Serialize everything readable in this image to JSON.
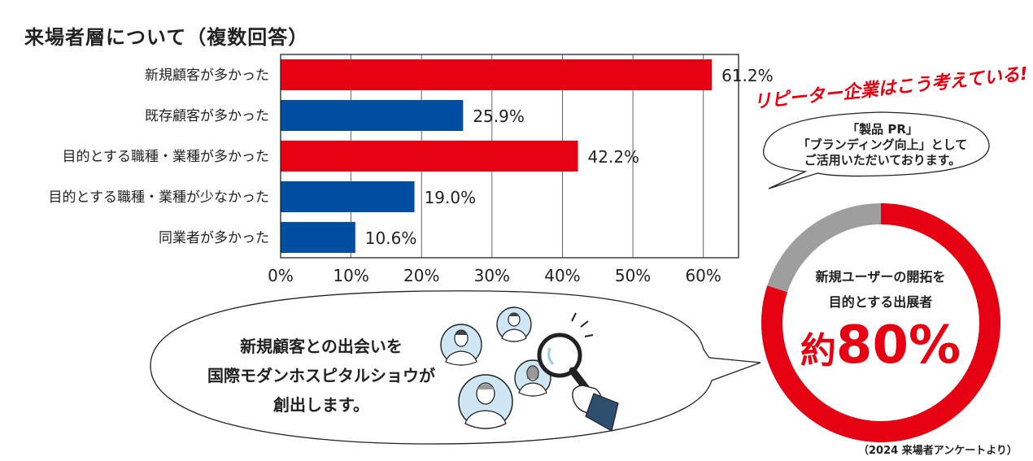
{
  "chart_data": {
    "type": "bar",
    "orientation": "horizontal",
    "title": "来場者層について（複数回答）",
    "categories": [
      "新規顧客が多かった",
      "既存顧客が多かった",
      "目的とする職種・業種が多かった",
      "目的とする職種・業種が少なかった",
      "同業者が多かった"
    ],
    "values": [
      61.2,
      25.9,
      42.2,
      19.0,
      10.6
    ],
    "value_labels": [
      "61.2%",
      "25.9%",
      "42.2%",
      "19.0%",
      "10.6%"
    ],
    "bar_colors": [
      "#e50012",
      "#004ea2",
      "#e50012",
      "#004ea2",
      "#004ea2"
    ],
    "xlim": [
      0,
      65
    ],
    "ticks": [
      0,
      10,
      20,
      30,
      40,
      50,
      60
    ],
    "tick_labels": [
      "0%",
      "10%",
      "20%",
      "30%",
      "40%",
      "50%",
      "60%"
    ],
    "grid": true,
    "xlabel": "",
    "ylabel": ""
  },
  "repeater": {
    "heading": "リピーター企業はこう考えている!",
    "quote_lines": [
      "「製品 PR」",
      "「ブランディング向上」として",
      "ご活用いただいております。"
    ]
  },
  "donut": {
    "caption_lines": [
      "新規ユーザーの開拓を",
      "目的とする出展者"
    ],
    "prefix": "約",
    "number": "80%",
    "fraction": 0.8,
    "color_main": "#e50012",
    "color_rest": "#9e9e9e"
  },
  "speech": {
    "lines": [
      "新規顧客との出会いを",
      "国際モダンホスピタルショウが",
      "創出します。"
    ]
  },
  "illustration": {
    "icons": [
      "person-icon",
      "person-icon",
      "person-icon",
      "person-icon",
      "magnifier-icon",
      "hand-icon"
    ]
  },
  "source_note": "（2024 来場者アンケートより）",
  "colors": {
    "red": "#e50012",
    "blue": "#004ea2",
    "gray": "#9e9e9e"
  }
}
